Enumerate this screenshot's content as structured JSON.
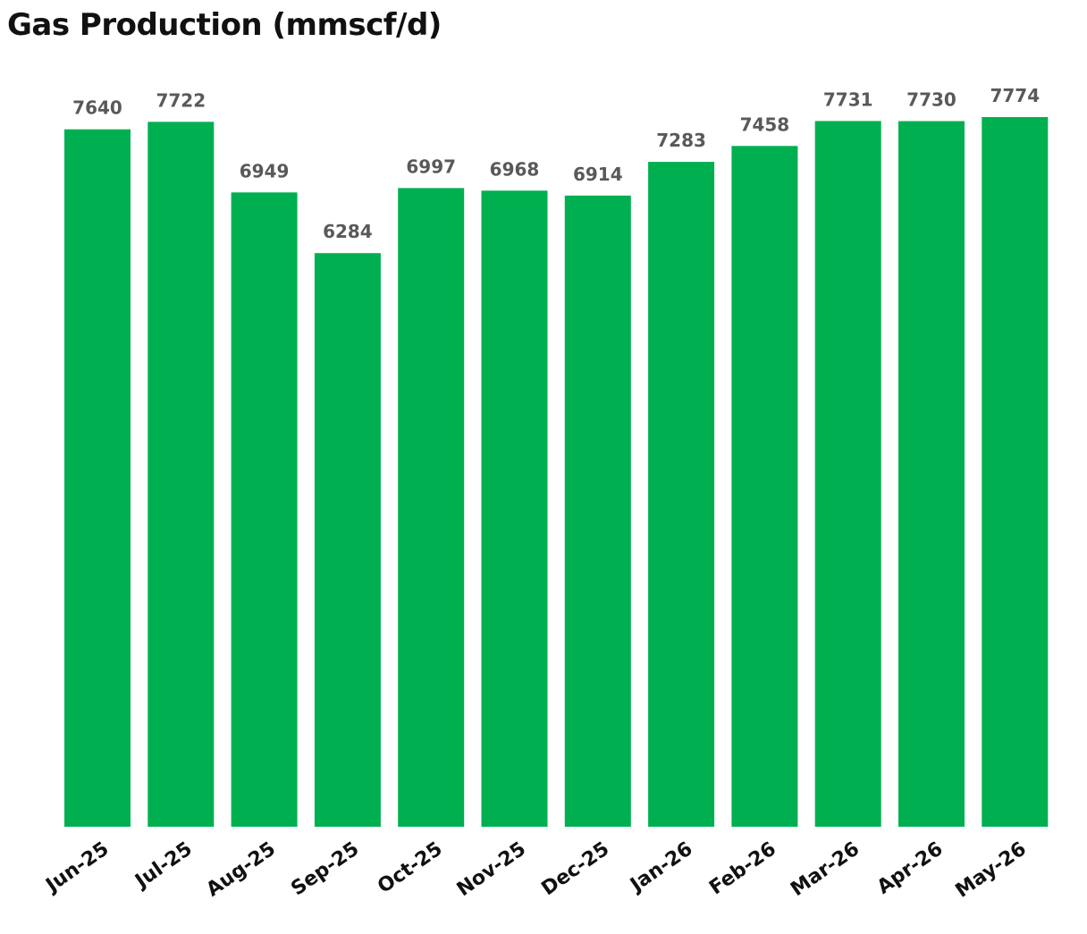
{
  "chart_data": {
    "type": "bar",
    "title": "Gas Production (mmscf/d)",
    "xlabel": "",
    "ylabel": "",
    "categories": [
      "Jun-25",
      "Jul-25",
      "Aug-25",
      "Sep-25",
      "Oct-25",
      "Nov-25",
      "Dec-25",
      "Jan-26",
      "Feb-26",
      "Mar-26",
      "Apr-26",
      "May-26"
    ],
    "values": [
      7640,
      7722,
      6949,
      6284,
      6997,
      6968,
      6914,
      7283,
      7458,
      7731,
      7730,
      7774
    ],
    "ylim": [
      0,
      7774
    ],
    "grid": false,
    "legend": "none",
    "data_labels": true,
    "colors": {
      "bar": "#00B050",
      "value_label": "#595959",
      "tick_label": "#111111"
    }
  }
}
